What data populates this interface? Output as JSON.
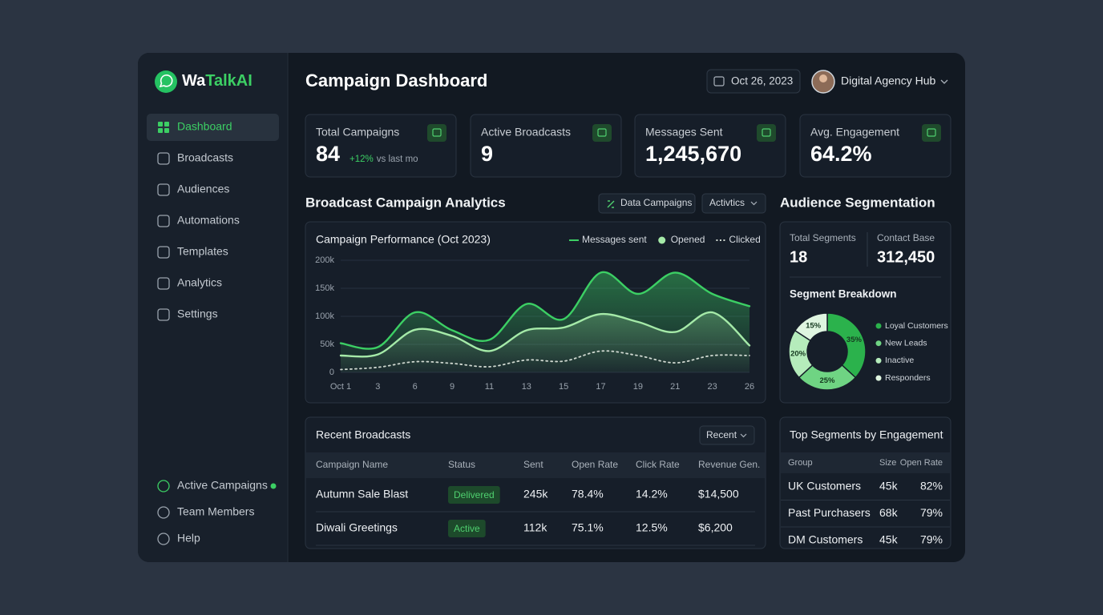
{
  "sidebar": {
    "brand": {
      "prefix": "Wa",
      "name": "TalkAI"
    },
    "nav": [
      "Dashboard",
      "Broadcasts",
      "Audiences",
      "Automations",
      "Templates",
      "Analytics",
      "Settings"
    ],
    "footer": [
      "Active Campaigns",
      "Team Members",
      "Help"
    ]
  },
  "header": {
    "title": "Campaign Dashboard",
    "date": "Oct 26, 2023",
    "user": "Digital Agency Hub"
  },
  "kpis": [
    {
      "label": "Total Campaigns",
      "value": "84",
      "delta": "+12%",
      "note": "vs last mo"
    },
    {
      "label": "Active Broadcasts",
      "value": "9"
    },
    {
      "label": "Messages Sent",
      "value": "1,245,670"
    },
    {
      "label": "Avg. Engagement",
      "value": "64.2%"
    }
  ],
  "analytics": {
    "title": "Broadcast Campaign Analytics",
    "buttons": [
      "Data Campaigns",
      "Activtics"
    ]
  },
  "segmentation": {
    "title": "Audience Segmentation",
    "stats": [
      {
        "label": "Total Segments",
        "value": "18"
      },
      {
        "label": "Contact Base",
        "value": "312,450"
      }
    ]
  },
  "chart_data": [
    {
      "type": "line",
      "title": "Campaign Performance (Oct 2023)",
      "categories": [
        "Oct 1",
        "3",
        "6",
        "9",
        "11",
        "13",
        "15",
        "17",
        "19",
        "21",
        "23",
        "26"
      ],
      "series": [
        {
          "name": "Messages sent",
          "color": "#3ccf64",
          "line_style": "solid",
          "legend_marker": "line",
          "area": true,
          "values": [
            52000,
            45000,
            107000,
            75000,
            58000,
            122000,
            95000,
            178000,
            140000,
            178000,
            140000,
            118000
          ]
        },
        {
          "name": "Opened",
          "color": "#a5eaa8",
          "line_style": "solid",
          "legend_marker": "circle",
          "area": true,
          "values": [
            30000,
            32000,
            76000,
            65000,
            38000,
            75000,
            80000,
            104000,
            90000,
            72000,
            107000,
            48000
          ]
        },
        {
          "name": "Clicked",
          "color": "#cfd8d0",
          "line_style": "dotted",
          "legend_marker": "dots",
          "area": false,
          "values": [
            5000,
            9000,
            19000,
            16000,
            10000,
            22000,
            20000,
            38000,
            30000,
            17000,
            30000,
            30000
          ]
        }
      ],
      "ylim": [
        0,
        200000
      ],
      "yticks": [
        0,
        {
          "value": 50000,
          "label": "50k"
        },
        {
          "value": 100000,
          "label": "100k"
        },
        {
          "value": 150000,
          "label": "150k"
        },
        {
          "value": 200000,
          "label": "200k"
        }
      ],
      "grid": true,
      "legend": "top-right"
    },
    {
      "type": "pie",
      "title": "Segment Breakdown",
      "donut": true,
      "categories": [
        "Loyal Customers",
        "New Leads",
        "Inactive",
        "Responders"
      ],
      "values": [
        35,
        25,
        20,
        15
      ],
      "value_labels": [
        "35%",
        "25%",
        "20%",
        "15%"
      ],
      "colors": [
        "#2bb24c",
        "#6fd483",
        "#b5ecbb",
        "#dff5e0"
      ],
      "legend": "right"
    }
  ],
  "recent": {
    "title": "Recent Broadcasts",
    "filter": "Recent",
    "headers": [
      "Campaign Name",
      "Status",
      "Sent",
      "Open Rate",
      "Click Rate",
      "Revenue Gen."
    ],
    "rows": [
      [
        "Autumn Sale Blast",
        "Delivered",
        "245k",
        "78.4%",
        "14.2%",
        "$14,500"
      ],
      [
        "Diwali Greetings",
        "Active",
        "112k",
        "75.1%",
        "12.5%",
        "$6,200"
      ]
    ]
  },
  "top_segments": {
    "title": "Top Segments by Engagement",
    "headers": [
      "Group",
      "Size",
      "Open Rate"
    ],
    "rows": [
      [
        "UK Customers",
        "45k",
        "82%"
      ],
      [
        "Past Purchasers",
        "68k",
        "79%"
      ],
      [
        "DM Customers",
        "45k",
        "79%"
      ]
    ]
  }
}
